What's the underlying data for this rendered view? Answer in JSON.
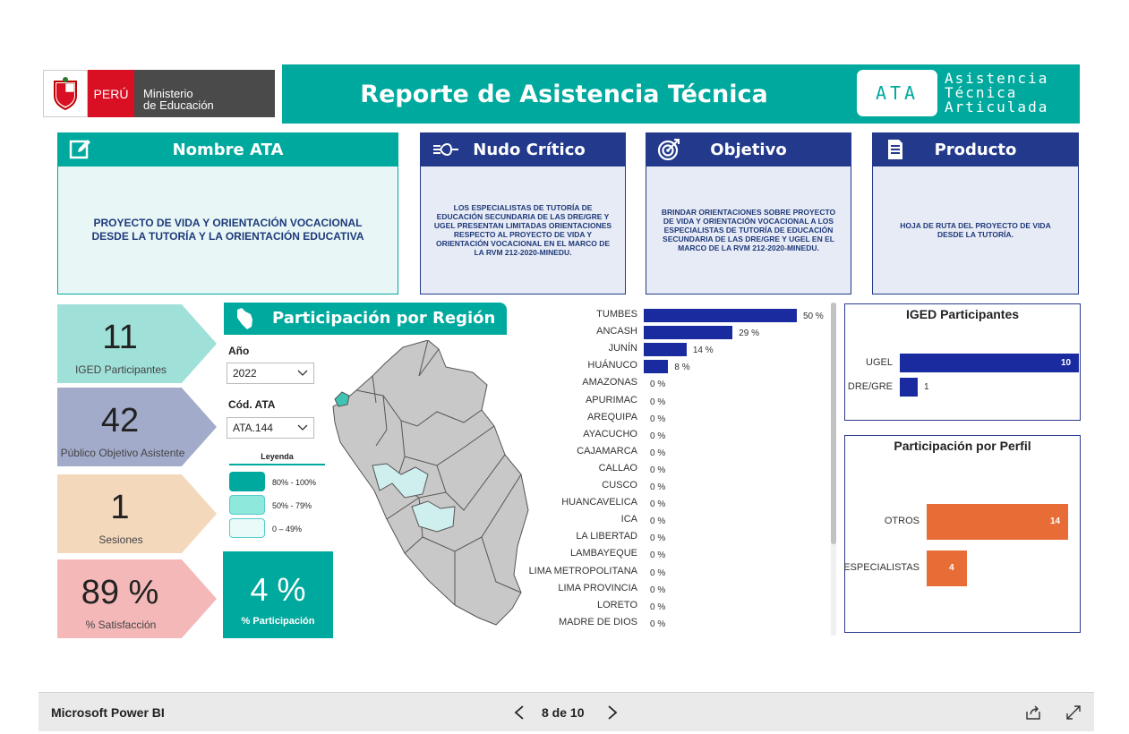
{
  "header": {
    "peru_label": "PERÚ",
    "ministry_line1": "Ministerio",
    "ministry_line2": "de Educación",
    "title": "Reporte de Asistencia Técnica",
    "ata_badge": "ATA",
    "ata_line1": "Asistencia",
    "ata_line2": "Técnica",
    "ata_line3": "Articulada"
  },
  "cards": {
    "nombre": {
      "title": "Nombre ATA",
      "text": "PROYECTO DE VIDA Y ORIENTACIÓN VOCACIONAL DESDE LA TUTORÍA Y LA ORIENTACIÓN EDUCATIVA",
      "color": "#00a99d"
    },
    "nudo": {
      "title": "Nudo Crítico",
      "text": "LOS ESPECIALISTAS DE TUTORÍA DE EDUCACIÓN SECUNDARIA DE LAS DRE/GRE Y UGEL PRESENTAN LIMITADAS ORIENTACIONES RESPECTO AL PROYECTO DE VIDA Y ORIENTACIÓN VOCACIONAL EN EL MARCO DE LA RVM 212-2020-MINEDU.",
      "color": "#233a8c"
    },
    "objetivo": {
      "title": "Objetivo",
      "text": "BRINDAR ORIENTACIONES SOBRE PROYECTO DE VIDA Y ORIENTACIÓN VOCACIONAL A LOS ESPECIALISTAS DE TUTORÍA DE EDUCACIÓN SECUNDARIA DE LAS DRE/GRE Y UGEL EN EL MARCO DE LA RVM 212-2020-MINEDU.",
      "color": "#233a8c"
    },
    "producto": {
      "title": "Producto",
      "text": "HOJA DE RUTA DEL PROYECTO DE VIDA DESDE LA TUTORÍA.",
      "color": "#233a8c"
    }
  },
  "kpis": [
    {
      "value": "11",
      "label": "IGED Participantes",
      "color": "#9fe0d8"
    },
    {
      "value": "42",
      "label": "Público Objetivo Asistente",
      "color": "#a3abcb"
    },
    {
      "value": "1",
      "label": "Sesiones",
      "color": "#f3d8bb"
    },
    {
      "value": "89 %",
      "label": "% Satisfacción",
      "color": "#f5b8b8"
    }
  ],
  "region": {
    "title": "Participación por Región",
    "year_label": "Año",
    "year_value": "2022",
    "code_label": "Cód. ATA",
    "code_value": "ATA.144",
    "legend_title": "Leyenda",
    "legend": [
      {
        "label": "80% - 100%",
        "color": "#00a99d"
      },
      {
        "label": "50% - 79%",
        "color": "#8fe8dc"
      },
      {
        "label": "0 – 49%",
        "color": "#eafaf8"
      }
    ],
    "participation_value": "4 %",
    "participation_label": "% Participación"
  },
  "chart_data": [
    {
      "type": "bar",
      "orientation": "horizontal",
      "categories": [
        "TUMBES",
        "ANCASH",
        "JUNÍN",
        "HUÁNUCO",
        "AMAZONAS",
        "APURIMAC",
        "AREQUIPA",
        "AYACUCHO",
        "CAJAMARCA",
        "CALLAO",
        "CUSCO",
        "HUANCAVELICA",
        "ICA",
        "LA LIBERTAD",
        "LAMBAYEQUE",
        "LIMA METROPOLITANA",
        "LIMA PROVINCIA",
        "LORETO",
        "MADRE DE DIOS"
      ],
      "values": [
        50,
        29,
        14,
        8,
        0,
        0,
        0,
        0,
        0,
        0,
        0,
        0,
        0,
        0,
        0,
        0,
        0,
        0,
        0
      ],
      "value_labels": [
        "50 %",
        "29 %",
        "14 %",
        "8 %",
        "0 %",
        "0 %",
        "0 %",
        "0 %",
        "0 %",
        "0 %",
        "0 %",
        "0 %",
        "0 %",
        "0 %",
        "0 %",
        "0 %",
        "0 %",
        "0 %",
        "0 %"
      ],
      "color": "#1a2ba0"
    },
    {
      "type": "bar",
      "orientation": "horizontal",
      "title": "IGED Participantes",
      "categories": [
        "UGEL",
        "DRE/GRE"
      ],
      "values": [
        10,
        1
      ],
      "color": "#1a2ba0"
    },
    {
      "type": "bar",
      "orientation": "horizontal",
      "title": "Participación por Perfil",
      "categories": [
        "OTROS",
        "ESPECIALISTAS"
      ],
      "values": [
        14,
        4
      ],
      "color": "#e86c35"
    }
  ],
  "footer": {
    "brand": "Microsoft Power BI",
    "page_indicator": "8 de 10"
  }
}
